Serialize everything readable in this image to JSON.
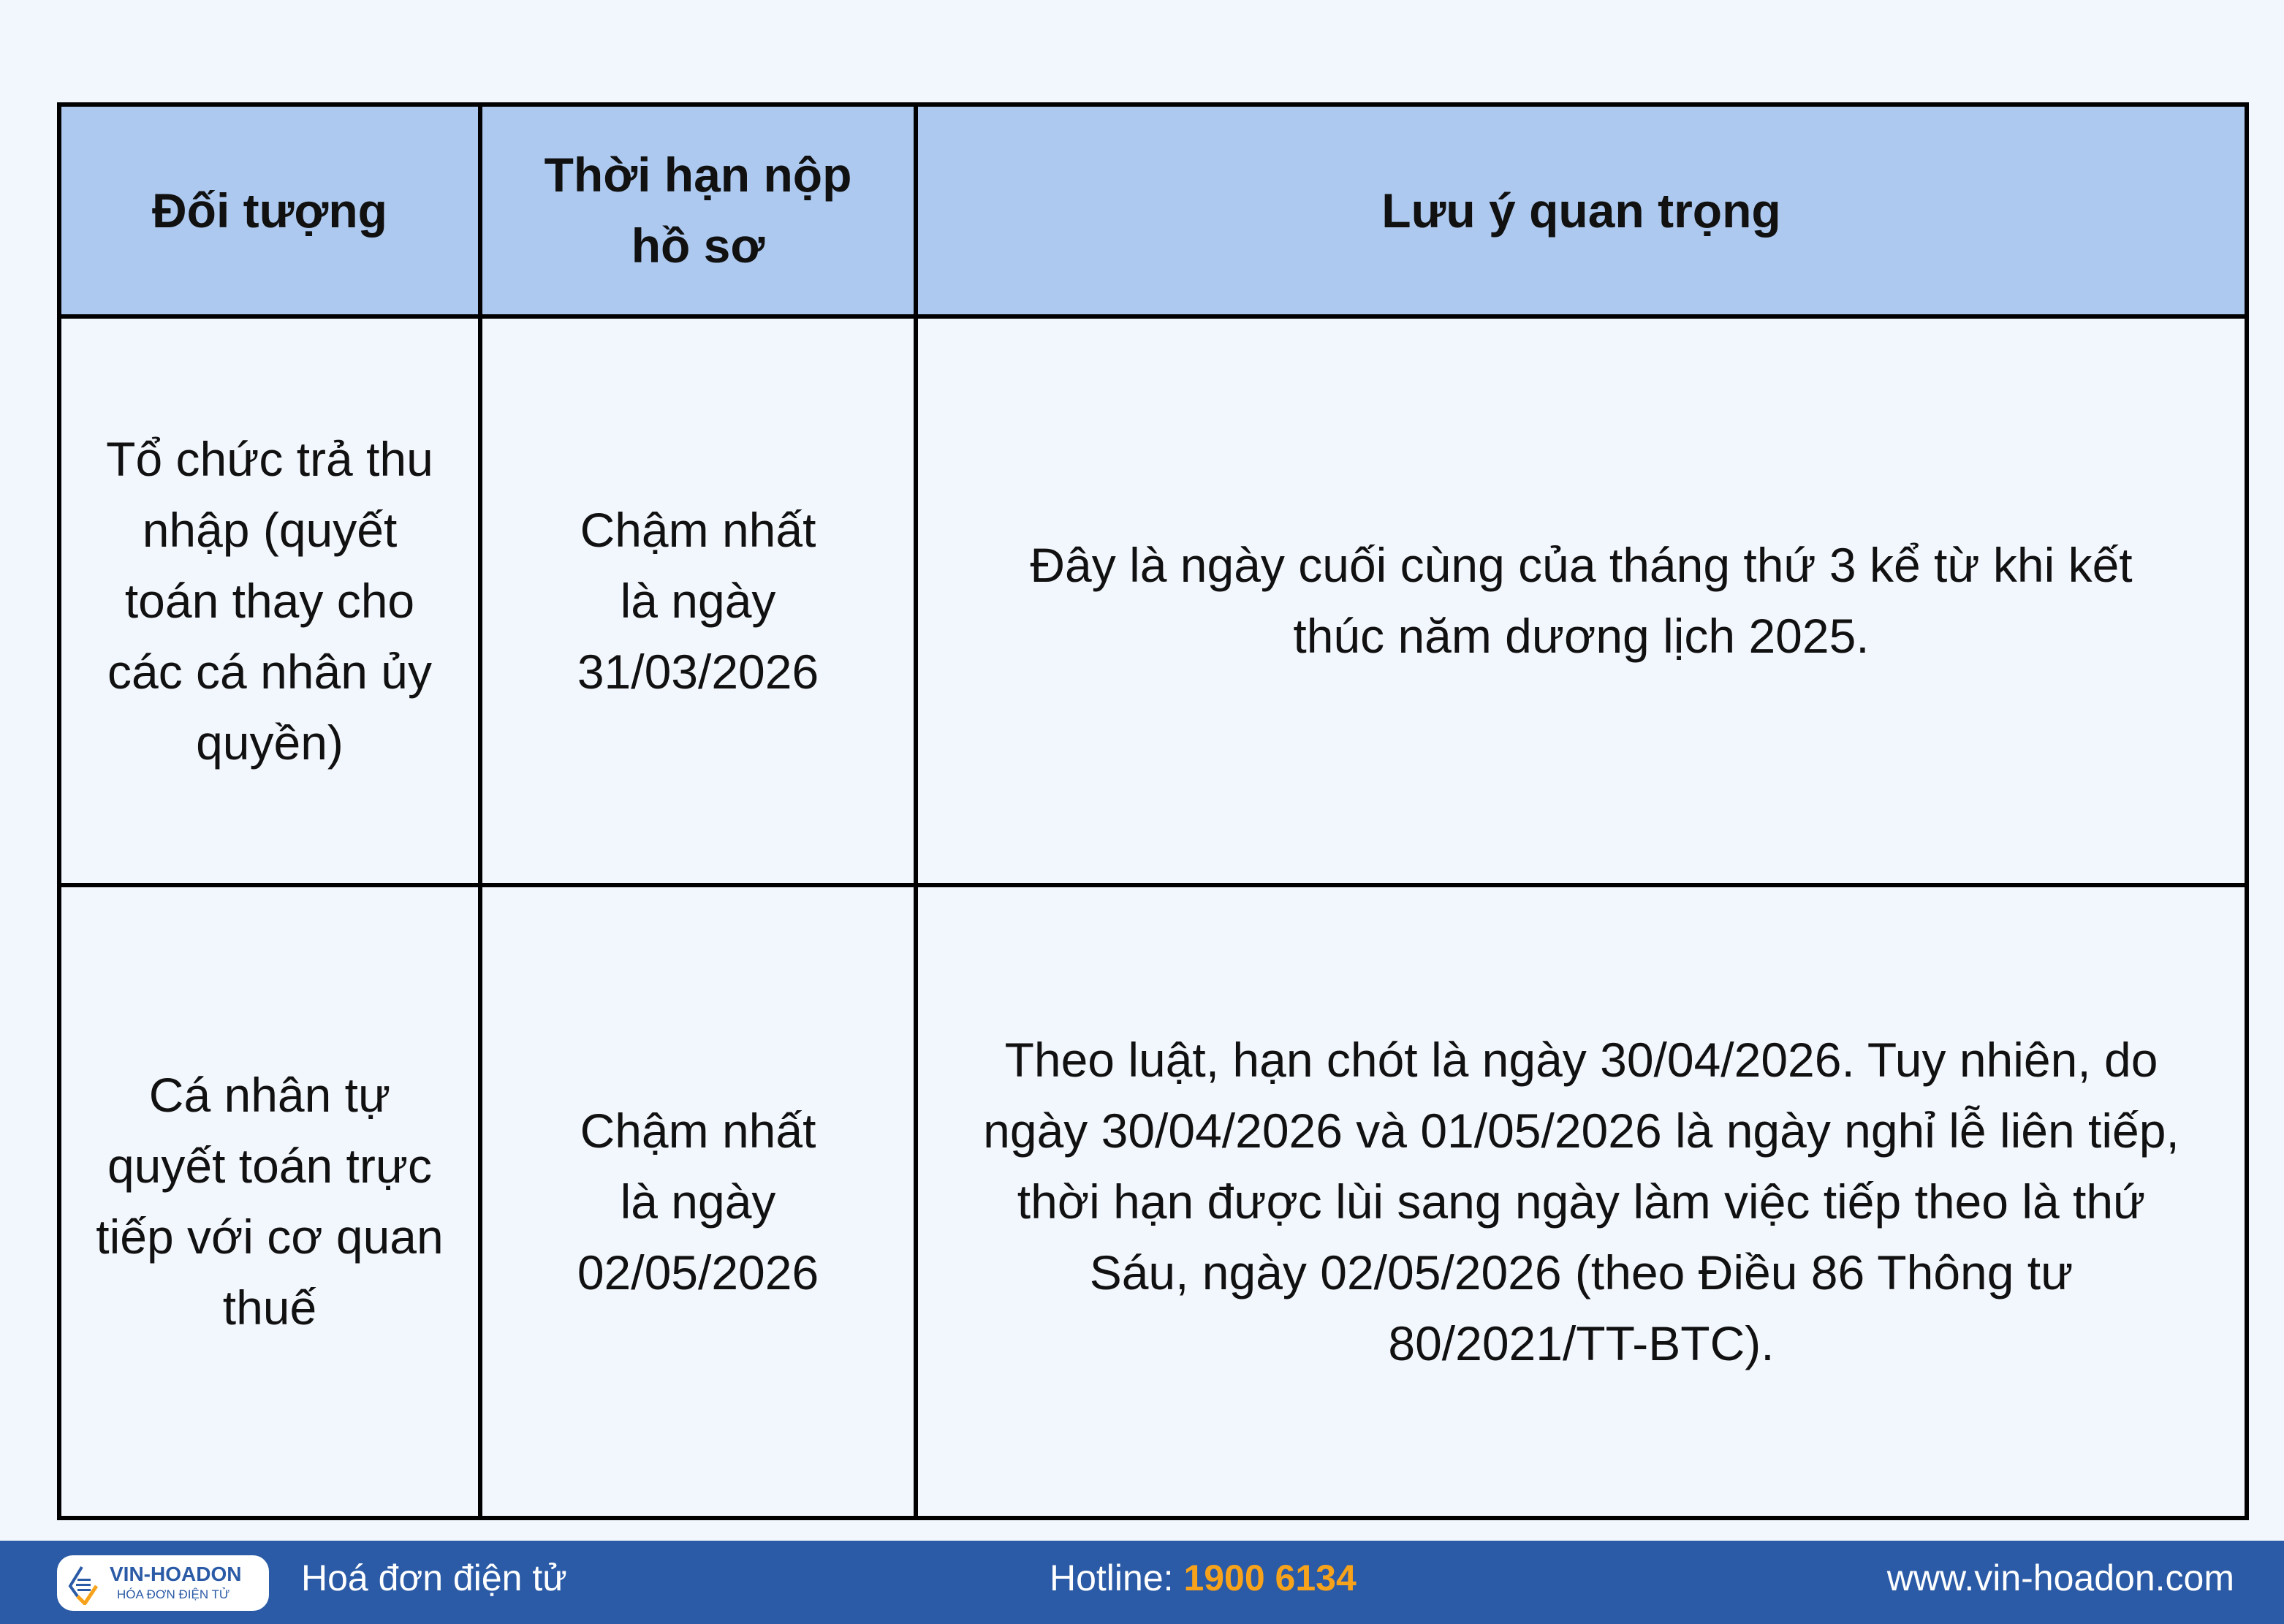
{
  "table": {
    "headers": [
      "Đối tượng",
      "Thời hạn nộp hồ sơ",
      "Lưu ý quan trọng"
    ],
    "rows": [
      [
        "Tổ chức trả thu nhập (quyết toán thay cho các cá nhân ủy quyền)",
        "Chậm nhất là ngày 31/03/2026",
        "Đây là ngày cuối cùng của tháng thứ 3 kể từ khi kết thúc năm dương lịch 2025."
      ],
      [
        "Cá nhân tự quyết toán trực tiếp với cơ quan thuế",
        "Chậm nhất là ngày 02/05/2026",
        "Theo luật, hạn chót là ngày 30/04/2026. Tuy nhiên, do ngày 30/04/2026 và 01/05/2026 là ngày nghỉ lễ liên tiếp, thời hạn được lùi sang ngày làm việc tiếp theo là thứ Sáu, ngày 02/05/2026 (theo Điều 86 Thông tư 80/2021/TT-BTC)."
      ]
    ]
  },
  "footer": {
    "logo_name": "VIN-HOADON",
    "logo_sub": "HÓA ĐƠN ĐIỆN TỬ",
    "tagline": "Hoá đơn điện tử",
    "hotline_label": "Hotline: ",
    "hotline_number": "1900 6134",
    "website": "www.vin-hoadon.com"
  },
  "colors": {
    "header_bg": "#adc9ef",
    "footer_bg": "#2b5ba6",
    "hotline": "#f7a21b"
  }
}
